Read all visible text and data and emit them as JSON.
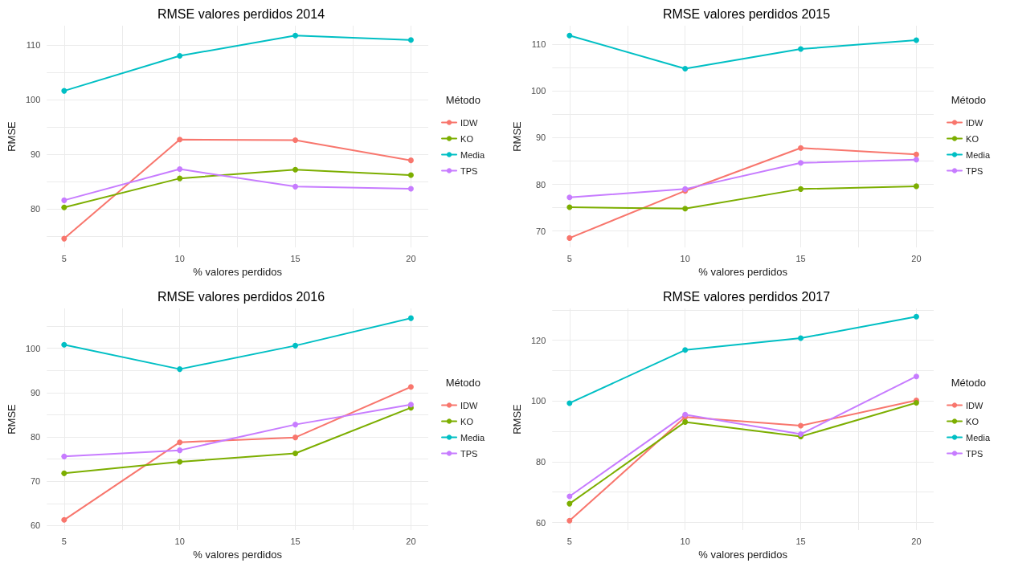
{
  "chart_data": [
    {
      "type": "line",
      "title": "RMSE valores perdidos 2014",
      "xlabel": "% valores perdidos",
      "ylabel": "RMSE",
      "legend_title": "Método",
      "legend": "right",
      "grid": true,
      "marker": "circle",
      "line_style": "solid",
      "x": [
        5,
        10,
        15,
        20
      ],
      "xlim": [
        4.25,
        20.75
      ],
      "xticks": [
        5,
        {
          "value": 7.5,
          "label": null
        },
        10,
        {
          "value": 12.5,
          "label": null
        },
        15,
        {
          "value": 17.5,
          "label": null
        },
        20
      ],
      "ylim": [
        73,
        113.5
      ],
      "yticks": [
        {
          "value": 75,
          "label": null
        },
        80,
        {
          "value": 85,
          "label": null
        },
        90,
        {
          "value": 95,
          "label": null
        },
        100,
        {
          "value": 105,
          "label": null
        },
        110
      ],
      "series": [
        {
          "name": "IDW",
          "color": "#f8766d",
          "values": [
            74.6,
            92.7,
            92.6,
            88.9
          ]
        },
        {
          "name": "KO",
          "color": "#7cae00",
          "values": [
            80.3,
            85.6,
            87.2,
            86.2
          ]
        },
        {
          "name": "Media",
          "color": "#00bfc4",
          "values": [
            101.6,
            108.0,
            111.7,
            110.9
          ]
        },
        {
          "name": "TPS",
          "color": "#c77cff",
          "values": [
            81.6,
            87.3,
            84.1,
            83.7
          ]
        }
      ]
    },
    {
      "type": "line",
      "title": "RMSE valores perdidos 2015",
      "xlabel": "% valores perdidos",
      "ylabel": "RMSE",
      "legend_title": "Método",
      "legend": "right",
      "grid": true,
      "marker": "circle",
      "line_style": "solid",
      "x": [
        5,
        10,
        15,
        20
      ],
      "xlim": [
        4.25,
        20.75
      ],
      "xticks": [
        5,
        {
          "value": 7.5,
          "label": null
        },
        10,
        {
          "value": 12.5,
          "label": null
        },
        15,
        {
          "value": 17.5,
          "label": null
        },
        20
      ],
      "ylim": [
        66.5,
        114
      ],
      "yticks": [
        70,
        {
          "value": 75,
          "label": null
        },
        80,
        {
          "value": 85,
          "label": null
        },
        90,
        {
          "value": 95,
          "label": null
        },
        100,
        {
          "value": 105,
          "label": null
        },
        110
      ],
      "series": [
        {
          "name": "IDW",
          "color": "#f8766d",
          "values": [
            68.5,
            78.6,
            87.8,
            86.4
          ]
        },
        {
          "name": "KO",
          "color": "#7cae00",
          "values": [
            75.1,
            74.8,
            79.0,
            79.6
          ]
        },
        {
          "name": "Media",
          "color": "#00bfc4",
          "values": [
            111.9,
            104.8,
            109.0,
            110.9
          ]
        },
        {
          "name": "TPS",
          "color": "#c77cff",
          "values": [
            77.2,
            79.0,
            84.6,
            85.3
          ]
        }
      ]
    },
    {
      "type": "line",
      "title": "RMSE valores perdidos 2016",
      "xlabel": "% valores perdidos",
      "ylabel": "RMSE",
      "legend_title": "Método",
      "legend": "right",
      "grid": true,
      "marker": "circle",
      "line_style": "solid",
      "x": [
        5,
        10,
        15,
        20
      ],
      "xlim": [
        4.25,
        20.75
      ],
      "xticks": [
        5,
        {
          "value": 7.5,
          "label": null
        },
        10,
        {
          "value": 12.5,
          "label": null
        },
        15,
        {
          "value": 17.5,
          "label": null
        },
        20
      ],
      "ylim": [
        59,
        109
      ],
      "yticks": [
        60,
        {
          "value": 65,
          "label": null
        },
        70,
        {
          "value": 75,
          "label": null
        },
        80,
        {
          "value": 85,
          "label": null
        },
        90,
        {
          "value": 95,
          "label": null
        },
        100,
        {
          "value": 105,
          "label": null
        }
      ],
      "series": [
        {
          "name": "IDW",
          "color": "#f8766d",
          "values": [
            61.3,
            78.8,
            79.9,
            91.3
          ]
        },
        {
          "name": "KO",
          "color": "#7cae00",
          "values": [
            71.8,
            74.4,
            76.3,
            86.6
          ]
        },
        {
          "name": "Media",
          "color": "#00bfc4",
          "values": [
            100.8,
            95.3,
            100.6,
            106.8
          ]
        },
        {
          "name": "TPS",
          "color": "#c77cff",
          "values": [
            75.6,
            77.0,
            82.8,
            87.3
          ]
        }
      ]
    },
    {
      "type": "line",
      "title": "RMSE valores perdidos 2017",
      "xlabel": "% valores perdidos",
      "ylabel": "RMSE",
      "legend_title": "Método",
      "legend": "right",
      "grid": true,
      "marker": "circle",
      "line_style": "solid",
      "x": [
        5,
        10,
        15,
        20
      ],
      "xlim": [
        4.25,
        20.75
      ],
      "xticks": [
        5,
        {
          "value": 7.5,
          "label": null
        },
        10,
        {
          "value": 12.5,
          "label": null
        },
        15,
        {
          "value": 17.5,
          "label": null
        },
        20
      ],
      "ylim": [
        57.5,
        130.5
      ],
      "yticks": [
        60,
        {
          "value": 70,
          "label": null
        },
        80,
        {
          "value": 90,
          "label": null
        },
        100,
        {
          "value": 110,
          "label": null
        },
        120,
        {
          "value": 130,
          "label": null
        }
      ],
      "series": [
        {
          "name": "IDW",
          "color": "#f8766d",
          "values": [
            60.6,
            94.7,
            91.9,
            100.2
          ]
        },
        {
          "name": "KO",
          "color": "#7cae00",
          "values": [
            66.2,
            93.1,
            88.3,
            99.4
          ]
        },
        {
          "name": "Media",
          "color": "#00bfc4",
          "values": [
            99.3,
            116.8,
            120.7,
            127.8
          ]
        },
        {
          "name": "TPS",
          "color": "#c77cff",
          "values": [
            68.6,
            95.5,
            89.1,
            108.1
          ]
        }
      ]
    }
  ]
}
